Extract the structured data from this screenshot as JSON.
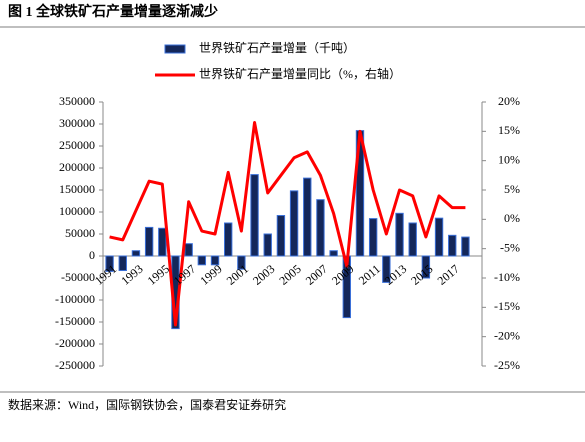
{
  "chart_data": {
    "type": "bar_line",
    "title": "图 1 全球铁矿石产量增量逐渐减少",
    "source": "数据来源：Wind，国际钢铁协会，国泰君安证券研究",
    "categories": [
      "1991",
      null,
      "1993",
      null,
      "1995",
      null,
      "1997",
      null,
      "1999",
      null,
      "2001",
      null,
      "2003",
      null,
      "2005",
      null,
      "2007",
      null,
      "2009",
      null,
      "2011",
      null,
      "2013",
      null,
      "2015",
      null,
      "2017",
      null
    ],
    "series": [
      {
        "name": "世界铁矿石产量增量（千吨）",
        "type": "bar",
        "color": "#14275a",
        "values": [
          -35000,
          -33000,
          12000,
          65000,
          63000,
          -165000,
          28000,
          -20000,
          -20000,
          75000,
          -30000,
          185000,
          50000,
          92000,
          148000,
          177000,
          128000,
          12000,
          -140000,
          285000,
          85000,
          -60000,
          97000,
          75000,
          -50000,
          86000,
          47000,
          43000
        ]
      },
      {
        "name": "世界铁矿石产量增量同比（%，右轴）",
        "type": "line",
        "axis": "y2",
        "color": "#ff0000",
        "values": [
          -3,
          -3.5,
          1.5,
          6.5,
          6,
          -18,
          3,
          -2,
          -2.5,
          8,
          -2,
          16.5,
          4.5,
          7.5,
          10.5,
          11.5,
          7.5,
          1,
          -8,
          15,
          5,
          -2.5,
          5,
          4,
          -3,
          4,
          2,
          2
        ]
      }
    ],
    "ylim": [
      -250000,
      350000
    ],
    "yticks": [
      -250000,
      -200000,
      -150000,
      -100000,
      -50000,
      0,
      50000,
      100000,
      150000,
      200000,
      250000,
      300000,
      350000
    ],
    "y2lim": [
      -25,
      20
    ],
    "y2ticks": [
      {
        "value": -25,
        "label": "-25%"
      },
      {
        "value": -20,
        "label": "-20%"
      },
      {
        "value": -15,
        "label": "-15%"
      },
      {
        "value": -10,
        "label": "-10%"
      },
      {
        "value": -5,
        "label": "-5%"
      },
      {
        "value": 0,
        "label": "0%"
      },
      {
        "value": 5,
        "label": "5%"
      },
      {
        "value": 10,
        "label": "10%"
      },
      {
        "value": 15,
        "label": "15%"
      },
      {
        "value": 20,
        "label": "20%"
      }
    ],
    "grid": false
  }
}
